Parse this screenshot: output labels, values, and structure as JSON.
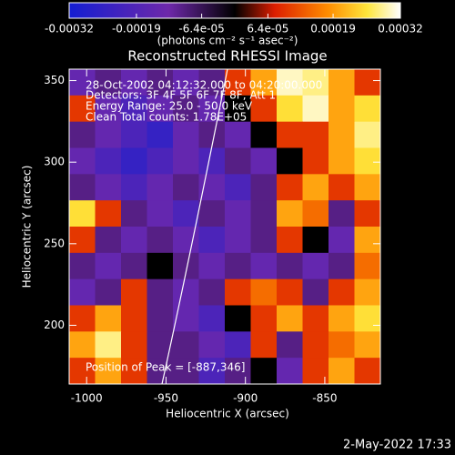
{
  "chart_data": {
    "type": "image",
    "title": "Reconstructed RHESSI Image",
    "xlabel": "Heliocentric X (arcsec)",
    "ylabel": "Heliocentric Y (arcsec)",
    "colorbar_label": "(photons cm⁻² s⁻¹ asec⁻²)",
    "zlim": [
      -0.00032,
      0.00032
    ],
    "cticks": [
      -0.00032,
      -0.00019,
      {
        "value": -6.4e-05,
        "label": "-6.4e-05"
      },
      {
        "value": 6.4e-05,
        "label": "6.4e-05"
      },
      0.00019,
      0.00032
    ],
    "xlim": [
      -1011,
      -815
    ],
    "xticks": [
      -1000,
      -950,
      -900,
      -850
    ],
    "ylim": [
      164,
      357
    ],
    "yticks": [
      200,
      250,
      300,
      350
    ],
    "annotations": [
      "28-Oct-2002 04:12:32.000 to 04:20:00.000",
      "Detectors: 3F 4F 5F 6F 7F 8F, Att 1",
      "Energy Range: 25.0 - 50.0 keV",
      "Clean    Total counts: 1.78E+05"
    ],
    "peak_label": "Position of Peak = [-887,346]",
    "z": [
      [
        -0.00015,
        -0.0001,
        -0.00015,
        -0.0001,
        -0.00015,
        -0.0001,
        0.0001,
        0.0002,
        0.0003,
        0.00028,
        0.0002,
        0.0001
      ],
      [
        0.0001,
        -0.00015,
        -0.0002,
        -0.00015,
        -0.0001,
        -0.00015,
        0,
        0.0001,
        0.00025,
        0.0003,
        0.0002,
        0.00025
      ],
      [
        -0.0001,
        -0.00015,
        -0.0002,
        -0.00025,
        -0.00015,
        -0.0001,
        -0.00015,
        0,
        0.0001,
        0.0001,
        0.0002,
        0.00028
      ],
      [
        -0.00015,
        -0.0002,
        -0.00025,
        -0.0002,
        -0.00015,
        -0.0002,
        -0.0001,
        -0.00015,
        0,
        0.0001,
        0.0002,
        0.00025
      ],
      [
        -0.0001,
        -0.00015,
        -0.0002,
        -0.00015,
        -0.0001,
        -0.00015,
        -0.0002,
        -0.0001,
        0.0001,
        0.0002,
        0.0001,
        0.0002
      ],
      [
        0.00025,
        0.0001,
        -0.0001,
        -0.00015,
        -0.0002,
        -0.0001,
        -0.00015,
        -0.0001,
        0.0002,
        0.00015,
        -0.0001,
        0.0001
      ],
      [
        0.0001,
        -0.0001,
        -0.00015,
        -0.0001,
        -0.00015,
        -0.0002,
        -0.00015,
        -0.0001,
        0.0001,
        0,
        -0.00015,
        0.0002
      ],
      [
        -0.0001,
        -0.00015,
        -0.0001,
        0,
        -0.0001,
        -0.00015,
        -0.0001,
        -0.00015,
        -0.0001,
        -0.00015,
        -0.0001,
        0.00015
      ],
      [
        -0.00015,
        -0.0001,
        0.0001,
        -0.0001,
        -0.00015,
        -0.0001,
        0.0001,
        0.00015,
        0.0001,
        -0.0001,
        0.0001,
        0.0002
      ],
      [
        0.0001,
        0.0002,
        0.0001,
        -0.0001,
        -0.00015,
        -0.0002,
        0,
        0.0001,
        0.0002,
        0.0001,
        0.0002,
        0.00025
      ],
      [
        0.0002,
        0.00028,
        0.0001,
        -0.0001,
        -0.0001,
        -0.00015,
        -0.0002,
        0.0001,
        -0.0001,
        0.0001,
        0.00015,
        0.0002
      ],
      [
        0.0001,
        0.0002,
        0.0001,
        -0.0001,
        -0.0001,
        -0.0002,
        -0.0001,
        0,
        -0.00015,
        0.0001,
        0.0002,
        0.0001
      ]
    ],
    "footer": "2-May-2022 17:33"
  }
}
